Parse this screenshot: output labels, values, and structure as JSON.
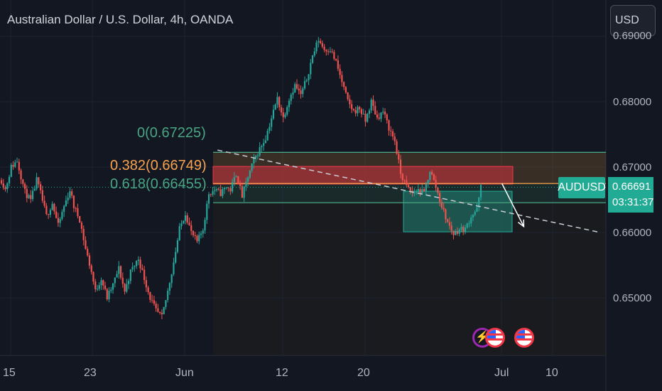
{
  "header": {
    "title": "Australian Dollar / U.S. Dollar, 4h, OANDA",
    "currency_button": "USD"
  },
  "chart_data": {
    "type": "candlestick",
    "symbol": "AUDUSD",
    "interval": "4h",
    "source": "OANDA",
    "y_ticks": [
      "0.69000",
      "0.68000",
      "0.67000",
      "0.66000",
      "0.65000"
    ],
    "y_tick_values": [
      0.69,
      0.68,
      0.67,
      0.66,
      0.65
    ],
    "x_ticks": [
      "15",
      "23",
      "Jun",
      "12",
      "20",
      "Jul",
      "10"
    ],
    "last_price": "0.66691",
    "countdown": "03:31:37",
    "symbol_tag": "AUDUSD",
    "fibonacci": [
      {
        "label": "0(0.67225)",
        "level": 0,
        "price": 0.67225,
        "color": "#4aa584"
      },
      {
        "label": "0.382(0.66749)",
        "level": 0.382,
        "price": 0.66749,
        "color": "#f7a350"
      },
      {
        "label": "0.618(0.66455)",
        "level": 0.618,
        "price": 0.66455,
        "color": "#4aa584"
      }
    ],
    "zones": [
      {
        "name": "resistance",
        "top": 0.6701,
        "bottom": 0.6674,
        "color": "#f23645"
      },
      {
        "name": "support",
        "top": 0.6663,
        "bottom": 0.6601,
        "color": "#22ab94"
      }
    ],
    "trendline": {
      "from": {
        "date": "2023-06-04",
        "price": 0.6726
      },
      "to": {
        "date": "2023-07-09",
        "price": 0.66
      }
    },
    "projection_arrow": {
      "from": {
        "date": "2023-06-30",
        "price": 0.6675
      },
      "to": {
        "date": "2023-07-02",
        "price": 0.6609
      }
    },
    "path": [
      [
        0,
        0.668
      ],
      [
        2,
        0.6666
      ],
      [
        5,
        0.67
      ],
      [
        8,
        0.671
      ],
      [
        12,
        0.6662
      ],
      [
        15,
        0.6648
      ],
      [
        18,
        0.668
      ],
      [
        20,
        0.666
      ],
      [
        23,
        0.6625
      ],
      [
        26,
        0.6645
      ],
      [
        29,
        0.661
      ],
      [
        32,
        0.664
      ],
      [
        35,
        0.6665
      ],
      [
        37,
        0.664
      ],
      [
        40,
        0.662
      ],
      [
        43,
        0.6575
      ],
      [
        46,
        0.654
      ],
      [
        48,
        0.651
      ],
      [
        51,
        0.653
      ],
      [
        54,
        0.65
      ],
      [
        57,
        0.652
      ],
      [
        60,
        0.6545
      ],
      [
        63,
        0.651
      ],
      [
        66,
        0.654
      ],
      [
        70,
        0.656
      ],
      [
        73,
        0.653
      ],
      [
        76,
        0.65
      ],
      [
        79,
        0.648
      ],
      [
        82,
        0.647
      ],
      [
        85,
        0.651
      ],
      [
        88,
        0.6555
      ],
      [
        91,
        0.6605
      ],
      [
        94,
        0.663
      ],
      [
        97,
        0.66
      ],
      [
        100,
        0.6585
      ],
      [
        103,
        0.6605
      ],
      [
        106,
        0.666
      ],
      [
        109,
        0.6665
      ],
      [
        112,
        0.666
      ],
      [
        115,
        0.667
      ],
      [
        117,
        0.6665
      ],
      [
        120,
        0.669
      ],
      [
        123,
        0.6655
      ],
      [
        126,
        0.6685
      ],
      [
        129,
        0.671
      ],
      [
        132,
        0.6728
      ],
      [
        135,
        0.6745
      ],
      [
        138,
        0.6775
      ],
      [
        141,
        0.6805
      ],
      [
        144,
        0.6775
      ],
      [
        147,
        0.6805
      ],
      [
        150,
        0.6825
      ],
      [
        153,
        0.681
      ],
      [
        156,
        0.6835
      ],
      [
        159,
        0.687
      ],
      [
        162,
        0.6895
      ],
      [
        165,
        0.688
      ],
      [
        168,
        0.688
      ],
      [
        171,
        0.686
      ],
      [
        174,
        0.683
      ],
      [
        177,
        0.68
      ],
      [
        180,
        0.6785
      ],
      [
        183,
        0.679
      ],
      [
        186,
        0.677
      ],
      [
        189,
        0.68
      ],
      [
        192,
        0.6775
      ],
      [
        195,
        0.6785
      ],
      [
        198,
        0.676
      ],
      [
        201,
        0.674
      ],
      [
        204,
        0.669
      ],
      [
        207,
        0.667
      ],
      [
        210,
        0.666
      ],
      [
        213,
        0.6665
      ],
      [
        216,
        0.666
      ],
      [
        219,
        0.6695
      ],
      [
        222,
        0.667
      ],
      [
        225,
        0.664
      ],
      [
        228,
        0.6615
      ],
      [
        231,
        0.6598
      ],
      [
        234,
        0.6605
      ],
      [
        237,
        0.6605
      ],
      [
        240,
        0.6625
      ],
      [
        243,
        0.6635
      ],
      [
        245,
        0.6669
      ]
    ]
  },
  "events": [
    {
      "type": "bolt",
      "icon": "lightning-icon"
    },
    {
      "type": "flag",
      "icon": "us-flag-icon"
    },
    {
      "type": "flag",
      "icon": "us-flag-icon"
    }
  ]
}
